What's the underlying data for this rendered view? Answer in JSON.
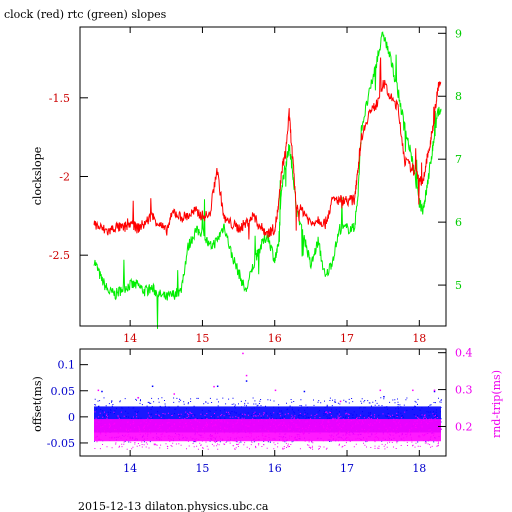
{
  "chart_data": [
    {
      "type": "line",
      "title": "clock (red) rtc (green) slopes",
      "ylabel": "clockslope",
      "x": {
        "range": [
          13.5,
          18.3
        ],
        "ticks": [
          14,
          15,
          16,
          17,
          18
        ],
        "tick_color": "#cc0000"
      },
      "y_left": {
        "range": [
          -2.95,
          -1.05
        ],
        "ticks": [
          -2.5,
          -2,
          -1.5
        ],
        "tick_labels": [
          "-2.5",
          "-2",
          "-1.5"
        ],
        "color": "#cc0000"
      },
      "y_right": {
        "range": [
          4.35,
          9.1
        ],
        "ticks": [
          5,
          6,
          7,
          8,
          9
        ],
        "tick_labels": [
          "5",
          "6",
          "7",
          "8",
          "9"
        ],
        "color": "#00cc00"
      },
      "series": [
        {
          "axis": "left",
          "color": "#ff0000",
          "x": [
            13.5,
            13.6,
            13.7,
            13.8,
            13.9,
            14.0,
            14.1,
            14.2,
            14.3,
            14.4,
            14.5,
            14.6,
            14.7,
            14.8,
            14.9,
            15.0,
            15.1,
            15.2,
            15.3,
            15.4,
            15.5,
            15.6,
            15.7,
            15.8,
            15.9,
            16.0,
            16.05,
            16.1,
            16.15,
            16.2,
            16.25,
            16.3,
            16.4,
            16.5,
            16.6,
            16.7,
            16.8,
            16.9,
            17.0,
            17.1,
            17.15,
            17.2,
            17.3,
            17.4,
            17.5,
            17.6,
            17.7,
            17.8,
            17.9,
            18.0,
            18.05,
            18.1,
            18.15,
            18.2,
            18.25,
            18.3
          ],
          "y": [
            -2.3,
            -2.33,
            -2.35,
            -2.32,
            -2.33,
            -2.3,
            -2.33,
            -2.3,
            -2.25,
            -2.3,
            -2.35,
            -2.22,
            -2.26,
            -2.25,
            -2.22,
            -2.25,
            -2.25,
            -1.95,
            -2.27,
            -2.3,
            -2.33,
            -2.3,
            -2.25,
            -2.32,
            -2.36,
            -2.33,
            -2.2,
            -1.95,
            -1.85,
            -1.6,
            -1.9,
            -2.2,
            -2.22,
            -2.3,
            -2.27,
            -2.3,
            -2.15,
            -2.15,
            -2.15,
            -2.15,
            -1.95,
            -1.75,
            -1.6,
            -1.55,
            -1.4,
            -1.5,
            -1.55,
            -1.9,
            -1.95,
            -2.0,
            -2.05,
            -1.9,
            -1.8,
            -1.65,
            -1.45,
            -1.4
          ]
        },
        {
          "axis": "right",
          "color": "#00ee00",
          "x": [
            13.5,
            13.6,
            13.7,
            13.8,
            13.9,
            14.0,
            14.1,
            14.2,
            14.3,
            14.4,
            14.5,
            14.6,
            14.7,
            14.8,
            14.9,
            15.0,
            15.1,
            15.2,
            15.3,
            15.4,
            15.5,
            15.6,
            15.7,
            15.8,
            15.9,
            16.0,
            16.05,
            16.1,
            16.15,
            16.2,
            16.25,
            16.3,
            16.4,
            16.5,
            16.6,
            16.7,
            16.8,
            16.9,
            17.0,
            17.1,
            17.15,
            17.2,
            17.3,
            17.4,
            17.5,
            17.6,
            17.7,
            17.8,
            17.9,
            18.0,
            18.05,
            18.1,
            18.15,
            18.2,
            18.25,
            18.3
          ],
          "y": [
            5.4,
            5.1,
            4.9,
            4.85,
            4.95,
            5.0,
            5.0,
            4.9,
            4.95,
            4.85,
            4.8,
            4.85,
            4.9,
            5.6,
            5.85,
            5.85,
            5.6,
            5.7,
            5.95,
            5.5,
            5.2,
            4.9,
            5.3,
            5.6,
            5.8,
            5.4,
            5.6,
            6.6,
            6.9,
            7.2,
            6.8,
            6.2,
            5.8,
            5.3,
            5.7,
            5.1,
            5.4,
            5.9,
            5.9,
            5.9,
            6.4,
            7.5,
            8.0,
            8.5,
            9.0,
            8.6,
            8.1,
            7.5,
            7.0,
            6.3,
            6.2,
            6.5,
            6.9,
            7.3,
            7.7,
            7.8
          ]
        }
      ]
    },
    {
      "type": "scatter",
      "ylabel_left": "offset(ms)",
      "ylabel_right": "rnd-trip(ms)",
      "x": {
        "range": [
          13.5,
          18.3
        ],
        "ticks": [
          14,
          15,
          16,
          17,
          18
        ],
        "tick_color": "#0000cc"
      },
      "y_left": {
        "range": [
          -0.075,
          0.13
        ],
        "ticks": [
          -0.05,
          0,
          0.05,
          0.1
        ],
        "tick_labels": [
          "-0.05",
          "0",
          "0.05",
          "0.1"
        ],
        "color": "#0000cc"
      },
      "y_right": {
        "range": [
          0.12,
          0.41
        ],
        "ticks": [
          0.2,
          0.3,
          0.4
        ],
        "tick_labels": [
          "0.2",
          "0.3",
          "0.4"
        ],
        "color": "#ee00ee"
      },
      "series": [
        {
          "axis": "left",
          "color": "#0000ff",
          "band": [
            -0.03,
            0.02
          ],
          "outliers": [
            [
              13.6,
              0.05
            ],
            [
              14.3,
              0.06
            ],
            [
              15.2,
              0.06
            ],
            [
              15.6,
              0.07
            ],
            [
              16.4,
              0.05
            ],
            [
              17.5,
              0.04
            ],
            [
              18.2,
              0.05
            ]
          ]
        },
        {
          "axis": "right",
          "color": "#ff00ff",
          "band": [
            0.16,
            0.22
          ],
          "outliers": [
            [
              13.55,
              0.3
            ],
            [
              14.1,
              0.28
            ],
            [
              14.6,
              0.29
            ],
            [
              15.15,
              0.31
            ],
            [
              15.55,
              0.4
            ],
            [
              15.6,
              0.34
            ],
            [
              16.0,
              0.3
            ],
            [
              16.9,
              0.27
            ],
            [
              17.45,
              0.3
            ],
            [
              17.9,
              0.3
            ],
            [
              18.2,
              0.3
            ]
          ]
        }
      ]
    }
  ],
  "footer": "2015-12-13  dilaton.physics.ubc.ca"
}
